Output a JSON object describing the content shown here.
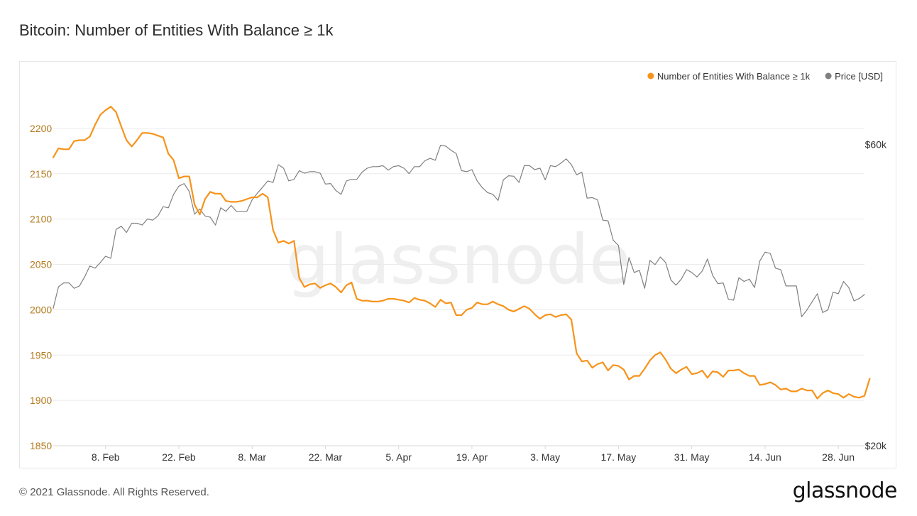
{
  "header": {
    "title": "Bitcoin: Number of Entities With Balance ≥ 1k"
  },
  "footer": {
    "copyright": "© 2021 Glassnode. All Rights Reserved.",
    "logo_text": "glassnode"
  },
  "watermark": "glassnode",
  "colors": {
    "entities": "#f7931a",
    "price": "#808080",
    "grid": "#ebebeb",
    "left_axis_text": "#b37a1d",
    "right_axis_text": "#333333",
    "watermark": "#efefef"
  },
  "chart_data": {
    "type": "line",
    "title": "Bitcoin: Number of Entities With Balance ≥ 1k",
    "x_range": [
      "2021-01-29",
      "2021-07-03"
    ],
    "x_ticks": [
      {
        "date": "2021-02-08",
        "label": "8. Feb"
      },
      {
        "date": "2021-02-22",
        "label": "22. Feb"
      },
      {
        "date": "2021-03-08",
        "label": "8. Mar"
      },
      {
        "date": "2021-03-22",
        "label": "22. Mar"
      },
      {
        "date": "2021-04-05",
        "label": "5. Apr"
      },
      {
        "date": "2021-04-19",
        "label": "19. Apr"
      },
      {
        "date": "2021-05-03",
        "label": "3. May"
      },
      {
        "date": "2021-05-17",
        "label": "17. May"
      },
      {
        "date": "2021-05-31",
        "label": "31. May"
      },
      {
        "date": "2021-06-14",
        "label": "14. Jun"
      },
      {
        "date": "2021-06-28",
        "label": "28. Jun"
      }
    ],
    "y_left": {
      "ylim": [
        1850,
        2250
      ],
      "ticks": [
        1850,
        1900,
        1950,
        2000,
        2050,
        2100,
        2150,
        2200
      ]
    },
    "y_right": {
      "scale": "log",
      "ylim": [
        20000,
        75000
      ],
      "ticks": [
        {
          "value": 20000,
          "label": "$20k"
        },
        {
          "value": 60000,
          "label": "$60k"
        }
      ]
    },
    "grid": true,
    "legend": {
      "position": "top-right",
      "entries": [
        {
          "name": "Number of Entities With Balance ≥ 1k",
          "color": "#f7931a"
        },
        {
          "name": "Price [USD]",
          "color": "#808080"
        }
      ]
    },
    "start_date": "2021-01-29",
    "series": [
      {
        "name": "Number of Entities With Balance ≥ 1k",
        "axis": "left",
        "color": "#f7931a",
        "values": [
          2168,
          2178,
          2177,
          2177,
          2186,
          2187,
          2187,
          2191,
          2204,
          2215,
          2220,
          2224,
          2218,
          2202,
          2187,
          2180,
          2187,
          2195,
          2195,
          2194,
          2192,
          2190,
          2172,
          2165,
          2145,
          2147,
          2147,
          2116,
          2105,
          2122,
          2130,
          2128,
          2128,
          2120,
          2119,
          2119,
          2120,
          2122,
          2124,
          2124,
          2128,
          2124,
          2088,
          2074,
          2076,
          2073,
          2076,
          2035,
          2025,
          2028,
          2029,
          2024,
          2027,
          2029,
          2025,
          2019,
          2027,
          2030,
          2012,
          2010,
          2010,
          2009,
          2009,
          2010,
          2012,
          2012,
          2011,
          2010,
          2008,
          2013,
          2011,
          2010,
          2007,
          2003,
          2011,
          2007,
          2008,
          1994,
          1994,
          2000,
          2002,
          2008,
          2006,
          2006,
          2009,
          2006,
          2004,
          2000,
          1998,
          2001,
          2004,
          2001,
          1995,
          1990,
          1994,
          1995,
          1992,
          1994,
          1995,
          1989,
          1952,
          1943,
          1944,
          1936,
          1940,
          1942,
          1933,
          1939,
          1938,
          1934,
          1923,
          1927,
          1927,
          1935,
          1944,
          1950,
          1953,
          1945,
          1935,
          1930,
          1934,
          1937,
          1929,
          1930,
          1933,
          1925,
          1932,
          1931,
          1926,
          1933,
          1933,
          1934,
          1930,
          1927,
          1927,
          1917,
          1918,
          1920,
          1917,
          1912,
          1913,
          1910,
          1910,
          1913,
          1911,
          1911,
          1902,
          1908,
          1911,
          1908,
          1907,
          1903,
          1907,
          1904,
          1903,
          1905,
          1924
        ]
      },
      {
        "name": "Price [USD]",
        "axis": "right",
        "color": "#808080",
        "values": [
          33000,
          35700,
          36200,
          36200,
          35500,
          35800,
          37000,
          38500,
          38200,
          39000,
          39900,
          39600,
          44000,
          44500,
          43500,
          45000,
          45000,
          44700,
          45700,
          45500,
          46200,
          47800,
          47600,
          50000,
          51500,
          52000,
          50500,
          46500,
          47400,
          46200,
          46000,
          44700,
          47600,
          47000,
          48000,
          47000,
          47000,
          47000,
          49000,
          50200,
          51300,
          52500,
          52200,
          55700,
          55000,
          52500,
          52800,
          54500,
          54000,
          54300,
          54300,
          54000,
          51900,
          52000,
          50700,
          50000,
          52500,
          52800,
          52800,
          54200,
          55000,
          55300,
          55300,
          55500,
          54600,
          55300,
          55500,
          55000,
          53900,
          55300,
          55300,
          56500,
          57000,
          56600,
          59800,
          59600,
          58700,
          58000,
          54500,
          54300,
          54700,
          52500,
          51200,
          50300,
          50000,
          48900,
          52700,
          53500,
          53400,
          52200,
          55500,
          55500,
          54700,
          55000,
          52700,
          55500,
          55300,
          56000,
          56900,
          55700,
          53700,
          54200,
          49300,
          49400,
          49000,
          45500,
          45400,
          42300,
          41500,
          36000,
          39700,
          37600,
          37900,
          35500,
          39300,
          38700,
          39800,
          39000,
          36600,
          35900,
          36700,
          38000,
          37600,
          37000,
          37800,
          39500,
          37200,
          36100,
          36200,
          34100,
          34000,
          36900,
          36400,
          36700,
          35600,
          39200,
          40500,
          40300,
          38200,
          38000,
          35800,
          35800,
          35800,
          32000,
          32800,
          33800,
          34800,
          32500,
          32800,
          35000,
          34800,
          36400,
          35600,
          33900,
          34200,
          34700
        ]
      }
    ]
  }
}
